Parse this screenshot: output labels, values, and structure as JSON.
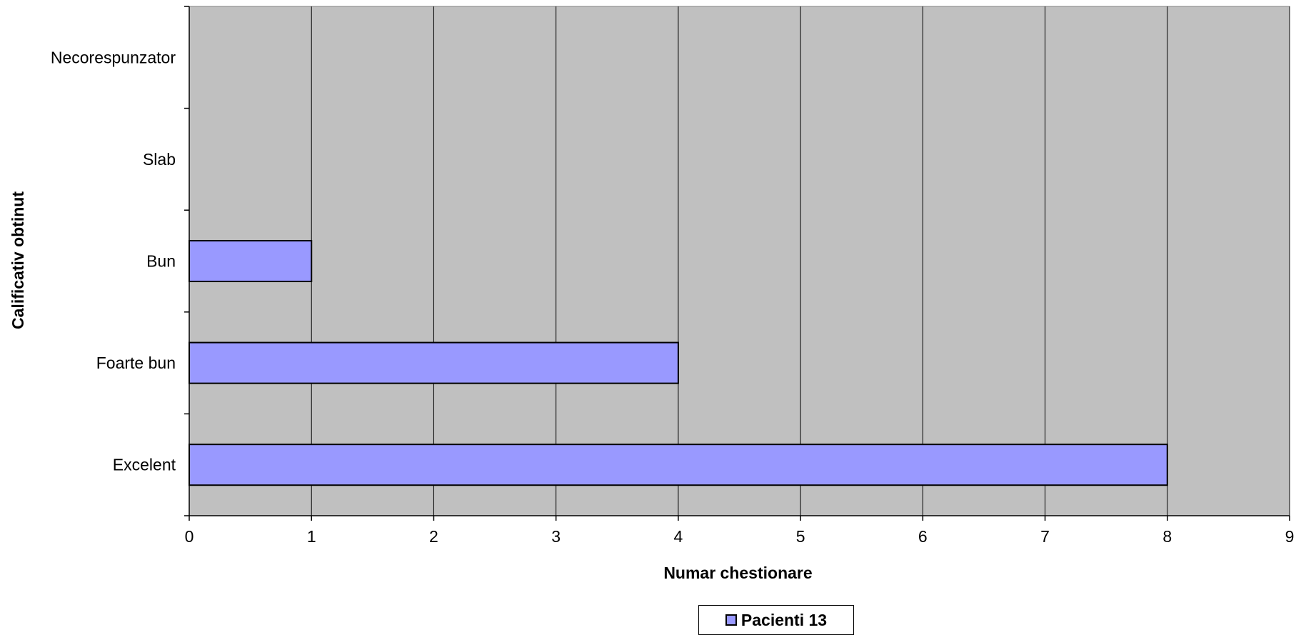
{
  "chart_data": {
    "type": "bar",
    "orientation": "horizontal",
    "categories": [
      "Excelent",
      "Foarte bun",
      "Bun",
      "Slab",
      "Necorespunzator"
    ],
    "series": [
      {
        "name": "Pacienti 13",
        "values": [
          8,
          4,
          1,
          0,
          0
        ]
      }
    ],
    "xlabel": "Numar chestionare",
    "ylabel": "Calificativ obtinut",
    "xlim": [
      0,
      9
    ],
    "xticks": [
      "0",
      "1",
      "2",
      "3",
      "4",
      "5",
      "6",
      "7",
      "8",
      "9"
    ],
    "grid": "vertical",
    "legend_position": "bottom",
    "colors": {
      "bar": "#9999ff",
      "plot_background": "#c0c0c0",
      "gridline": "#000000"
    }
  }
}
